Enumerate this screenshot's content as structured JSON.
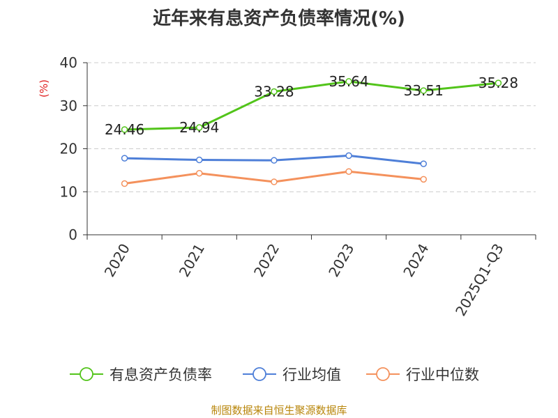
{
  "chart_data": {
    "type": "line",
    "title": "近年来有息资产负债率情况(%)",
    "ylabel": "(%)",
    "xlabel": "",
    "categories": [
      "2020",
      "2021",
      "2022",
      "2023",
      "2024",
      "2025Q1-Q3"
    ],
    "ylim": [
      0,
      40
    ],
    "yticks": [
      0,
      10,
      20,
      30,
      40
    ],
    "grid": true,
    "legend_position": "bottom",
    "series": [
      {
        "name": "有息资产负债率",
        "color": "#52c41a",
        "values": [
          24.46,
          24.94,
          33.28,
          35.64,
          33.51,
          35.28
        ],
        "show_labels": true
      },
      {
        "name": "行业均值",
        "color": "#4e7fd8",
        "values": [
          17.8,
          17.4,
          17.3,
          18.4,
          16.5,
          null
        ],
        "show_labels": false
      },
      {
        "name": "行业中位数",
        "color": "#f4915c",
        "values": [
          11.9,
          14.3,
          12.3,
          14.7,
          12.9,
          null
        ],
        "show_labels": false
      }
    ]
  },
  "source": "制图数据来自恒生聚源数据库"
}
